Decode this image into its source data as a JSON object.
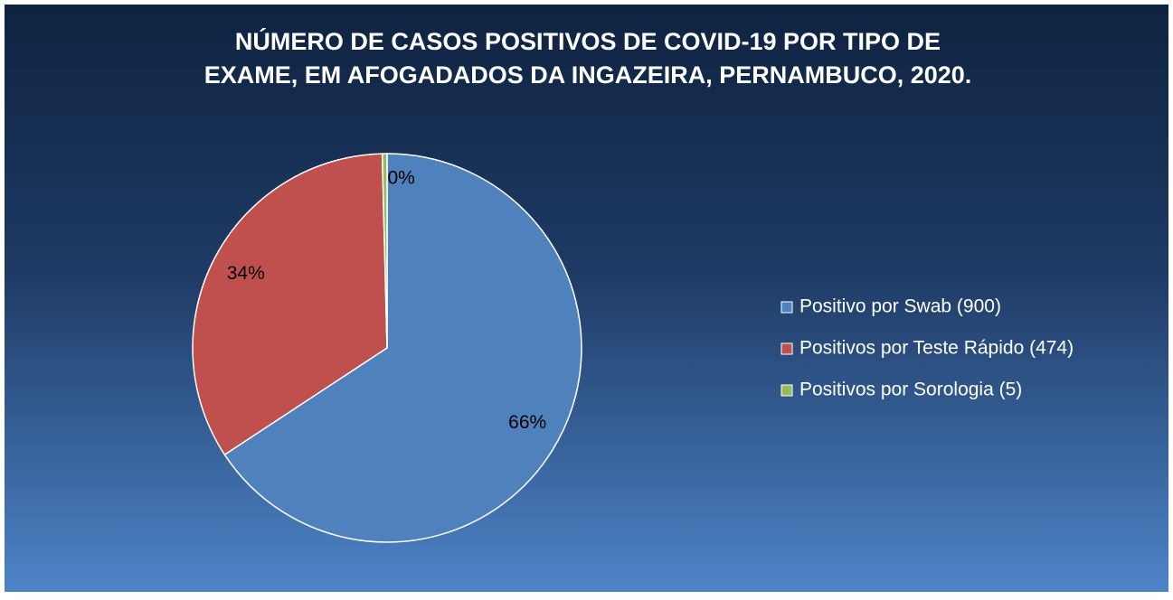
{
  "chart_data": {
    "type": "pie",
    "title": [
      "NÚMERO DE CASOS POSITIVOS DE COVID-19 POR TIPO DE",
      "EXAME, EM AFOGADADOS DA INGAZEIRA, PERNAMBUCO, 2020."
    ],
    "categories": [
      "Positivo por Swab (900)",
      "Positivos por Teste Rápido (474)",
      "Positivos por Sorologia (5)"
    ],
    "values": [
      66,
      34,
      0.4
    ],
    "value_labels": [
      "66%",
      "34%",
      "0%"
    ],
    "colors": [
      "#4f81bd",
      "#c0504d",
      "#9bbb59"
    ],
    "legend": "right"
  }
}
